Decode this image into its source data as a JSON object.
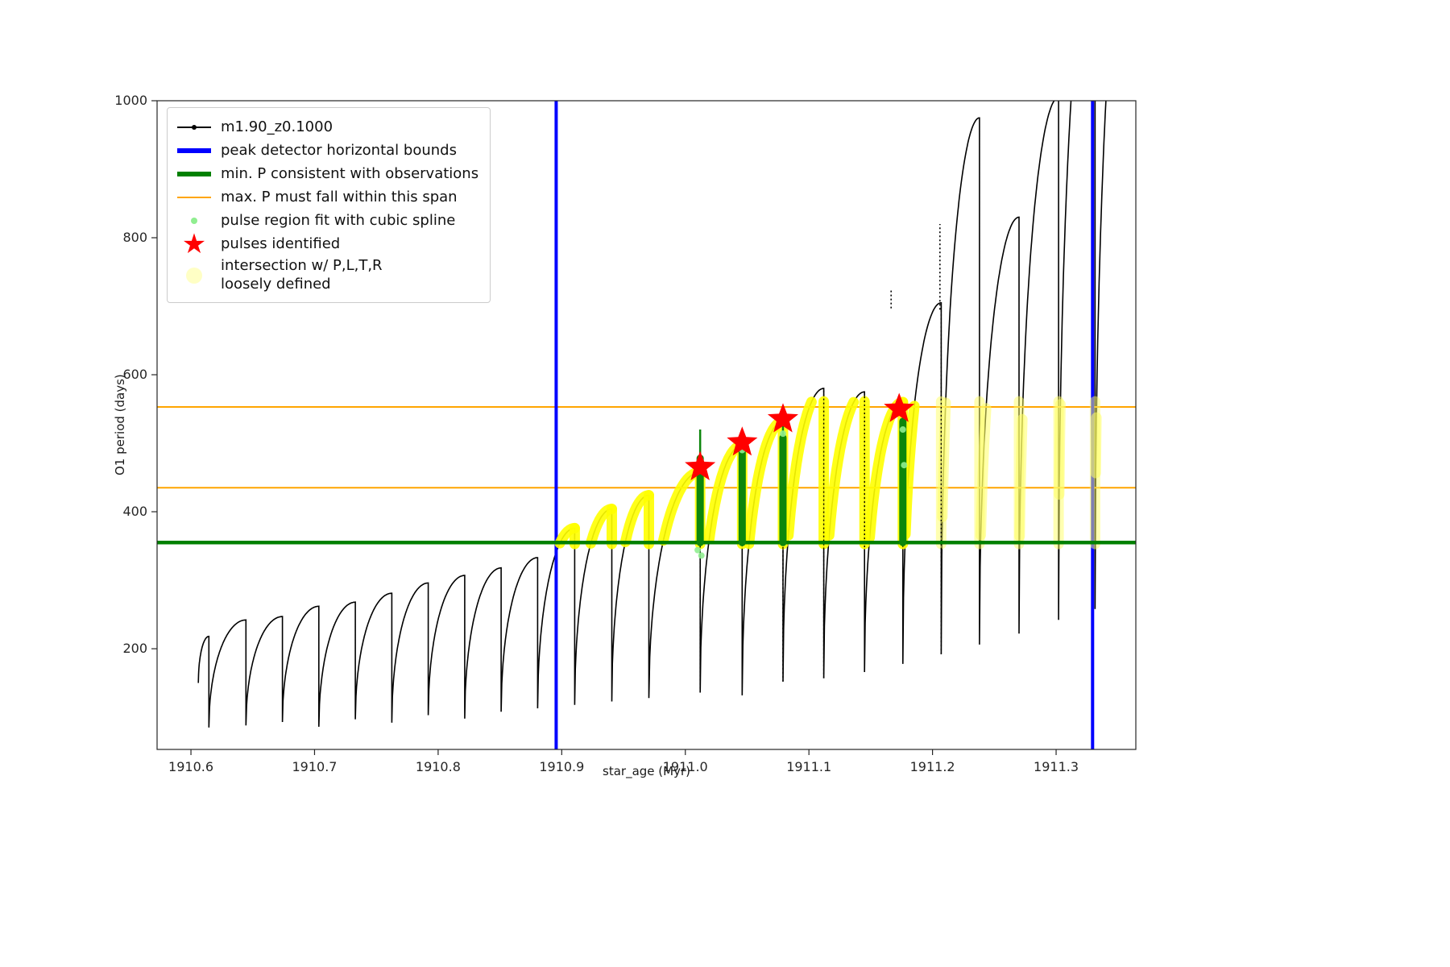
{
  "figure": {
    "background": "#ffffff"
  },
  "chart_data": {
    "type": "line",
    "title": "",
    "xlabel": "star_age (Myr)",
    "ylabel": "O1 period (days)",
    "xlim": [
      1910.5726,
      1911.3645
    ],
    "ylim": [
      53,
      1000
    ],
    "grid": false,
    "legend_position": "upper left",
    "xticks": {
      "values": [
        1910.6,
        1910.7,
        1910.8,
        1910.9,
        1911.0,
        1911.1,
        1911.2,
        1911.3
      ],
      "labels": [
        "1910.6",
        "1910.7",
        "1910.8",
        "1910.9",
        "1911.0",
        "1911.1",
        "1911.2",
        "1911.3"
      ]
    },
    "yticks": {
      "values": [
        200,
        400,
        600,
        800,
        1000
      ],
      "labels": [
        "200",
        "400",
        "600",
        "800",
        "1000"
      ]
    },
    "series_name": "m1.90_z0.1000",
    "cycle_format": [
      "x_start",
      "y_dip",
      "y_peak"
    ],
    "pulse_cycles": [
      [
        1910.606,
        150,
        218
      ],
      [
        1910.6145,
        85,
        242
      ],
      [
        1910.6445,
        88,
        247
      ],
      [
        1910.674,
        93,
        262
      ],
      [
        1910.7035,
        86,
        268
      ],
      [
        1910.733,
        97,
        281
      ],
      [
        1910.7625,
        92,
        296
      ],
      [
        1910.792,
        103,
        307
      ],
      [
        1910.8215,
        98,
        318
      ],
      [
        1910.851,
        108,
        333
      ],
      [
        1910.8805,
        113,
        376
      ],
      [
        1910.9105,
        118,
        404
      ],
      [
        1910.9405,
        123,
        424
      ],
      [
        1910.9705,
        128,
        458
      ],
      [
        1911.012,
        136,
        497
      ],
      [
        1911.046,
        132,
        532
      ],
      [
        1911.079,
        152,
        580
      ],
      [
        1911.112,
        157,
        575
      ],
      [
        1911.145,
        166,
        560
      ],
      [
        1911.176,
        178,
        705
      ],
      [
        1911.207,
        192,
        975
      ],
      [
        1911.238,
        206,
        830
      ],
      [
        1911.27,
        222,
        1005
      ],
      [
        1911.302,
        242,
        1250
      ],
      [
        1911.3315,
        258,
        1350
      ]
    ],
    "peak_detector_bounds_x": [
      1910.8955,
      1911.3295
    ],
    "min_P_consistent_y": 355,
    "max_P_span_y": [
      435,
      553
    ],
    "intersection_overlay": {
      "x_range": [
        1910.896,
        1911.334
      ],
      "y_range": [
        353,
        561
      ],
      "pale_after_x": 1911.19
    },
    "bar_format": [
      "x",
      "y_bottom",
      "y_thick_top",
      "y_thin_top"
    ],
    "spline_fit_bars": [
      [
        1911.012,
        355,
        478,
        520
      ],
      [
        1911.046,
        355,
        500,
        508
      ],
      [
        1911.079,
        355,
        508,
        528
      ],
      [
        1911.176,
        355,
        532,
        546
      ]
    ],
    "spline_points": [
      [
        1911.01,
        344
      ],
      [
        1911.013,
        336
      ],
      [
        1911.046,
        490
      ],
      [
        1911.079,
        514
      ],
      [
        1911.176,
        520
      ],
      [
        1911.177,
        468
      ]
    ],
    "pulses_identified": [
      [
        1911.012,
        465
      ],
      [
        1911.046,
        501
      ],
      [
        1911.079,
        535
      ],
      [
        1911.173,
        550
      ]
    ],
    "extra_black_spikes": [
      [
        1911.1665,
        697,
        723
      ],
      [
        1911.206,
        695,
        820
      ]
    ]
  },
  "legend": {
    "entries": [
      {
        "glyph": "line-dot",
        "color": "#000000",
        "label": "m1.90_z0.1000"
      },
      {
        "glyph": "thick-line",
        "color": "#0000ff",
        "label": "peak detector horizontal bounds"
      },
      {
        "glyph": "thick-line",
        "color": "#008000",
        "label": "min. P consistent with observations"
      },
      {
        "glyph": "thin-line",
        "color": "#ffa500",
        "label": "max. P must fall within this span"
      },
      {
        "glyph": "small-dot",
        "color": "#90ee90",
        "label": "pulse region fit with cubic spline"
      },
      {
        "glyph": "star",
        "color": "#ff0000",
        "label": "pulses identified"
      },
      {
        "glyph": "big-dot",
        "color": "rgba(255,255,150,0.55)",
        "label": "intersection w/ P,L,T,R\nloosely defined"
      }
    ]
  },
  "colors": {
    "series": "#000000",
    "peak_bounds": "#0000ff",
    "min_P": "#008000",
    "max_P": "#ffa500",
    "spline_bar": "#0c860c",
    "spline_dot": "#90ee90",
    "pulse_star": "#ff0000",
    "intersection": "#ffff00",
    "intersection_pale": "#ffff66",
    "axes_frame": "#262626"
  }
}
